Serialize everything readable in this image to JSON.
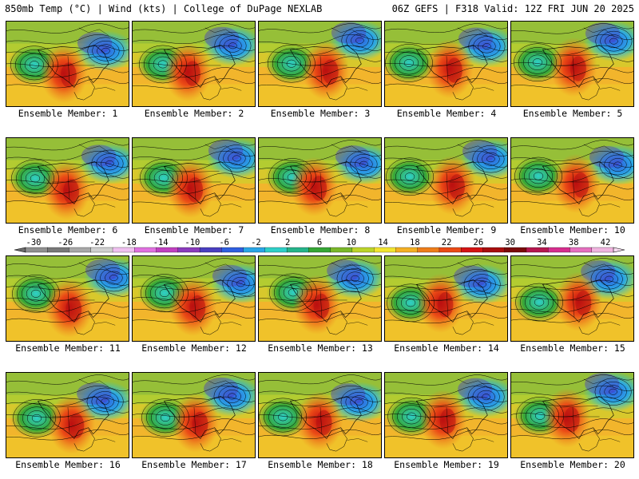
{
  "header": {
    "left": "850mb Temp (°C) | Wind (kts) | College of DuPage NEXLAB",
    "right": "06Z GEFS | F318 Valid: 12Z FRI JUN 20 2025"
  },
  "legend": {
    "ticks": [
      "-30",
      "-26",
      "-22",
      "-18",
      "-14",
      "-10",
      "-6",
      "-2",
      "2",
      "6",
      "10",
      "14",
      "18",
      "22",
      "26",
      "30",
      "34",
      "38",
      "42"
    ],
    "colors": [
      "#909090",
      "#787878",
      "#a8a8a8",
      "#cfcfcf",
      "#f0c0f0",
      "#e070e0",
      "#c040c0",
      "#8a3bbd",
      "#4a3fc0",
      "#2f5fe0",
      "#2aa6e6",
      "#2fcfc8",
      "#25b48a",
      "#36a636",
      "#7ab82a",
      "#bcd42a",
      "#f2e531",
      "#f4b024",
      "#ee7d1a",
      "#ea4a16",
      "#d41414",
      "#a80e0e",
      "#7a0a0a",
      "#b5174f",
      "#d62e8e",
      "#e56fbf",
      "#f0b4df"
    ]
  },
  "members": [
    {
      "label": "Ensemble Member: 1"
    },
    {
      "label": "Ensemble Member: 2"
    },
    {
      "label": "Ensemble Member: 3"
    },
    {
      "label": "Ensemble Member: 4"
    },
    {
      "label": "Ensemble Member: 5"
    },
    {
      "label": "Ensemble Member: 6"
    },
    {
      "label": "Ensemble Member: 7"
    },
    {
      "label": "Ensemble Member: 8"
    },
    {
      "label": "Ensemble Member: 9"
    },
    {
      "label": "Ensemble Member: 10"
    },
    {
      "label": "Ensemble Member: 11"
    },
    {
      "label": "Ensemble Member: 12"
    },
    {
      "label": "Ensemble Member: 13"
    },
    {
      "label": "Ensemble Member: 14"
    },
    {
      "label": "Ensemble Member: 15"
    },
    {
      "label": "Ensemble Member: 16"
    },
    {
      "label": "Ensemble Member: 17"
    },
    {
      "label": "Ensemble Member: 18"
    },
    {
      "label": "Ensemble Member: 19"
    },
    {
      "label": "Ensemble Member: 20"
    }
  ]
}
